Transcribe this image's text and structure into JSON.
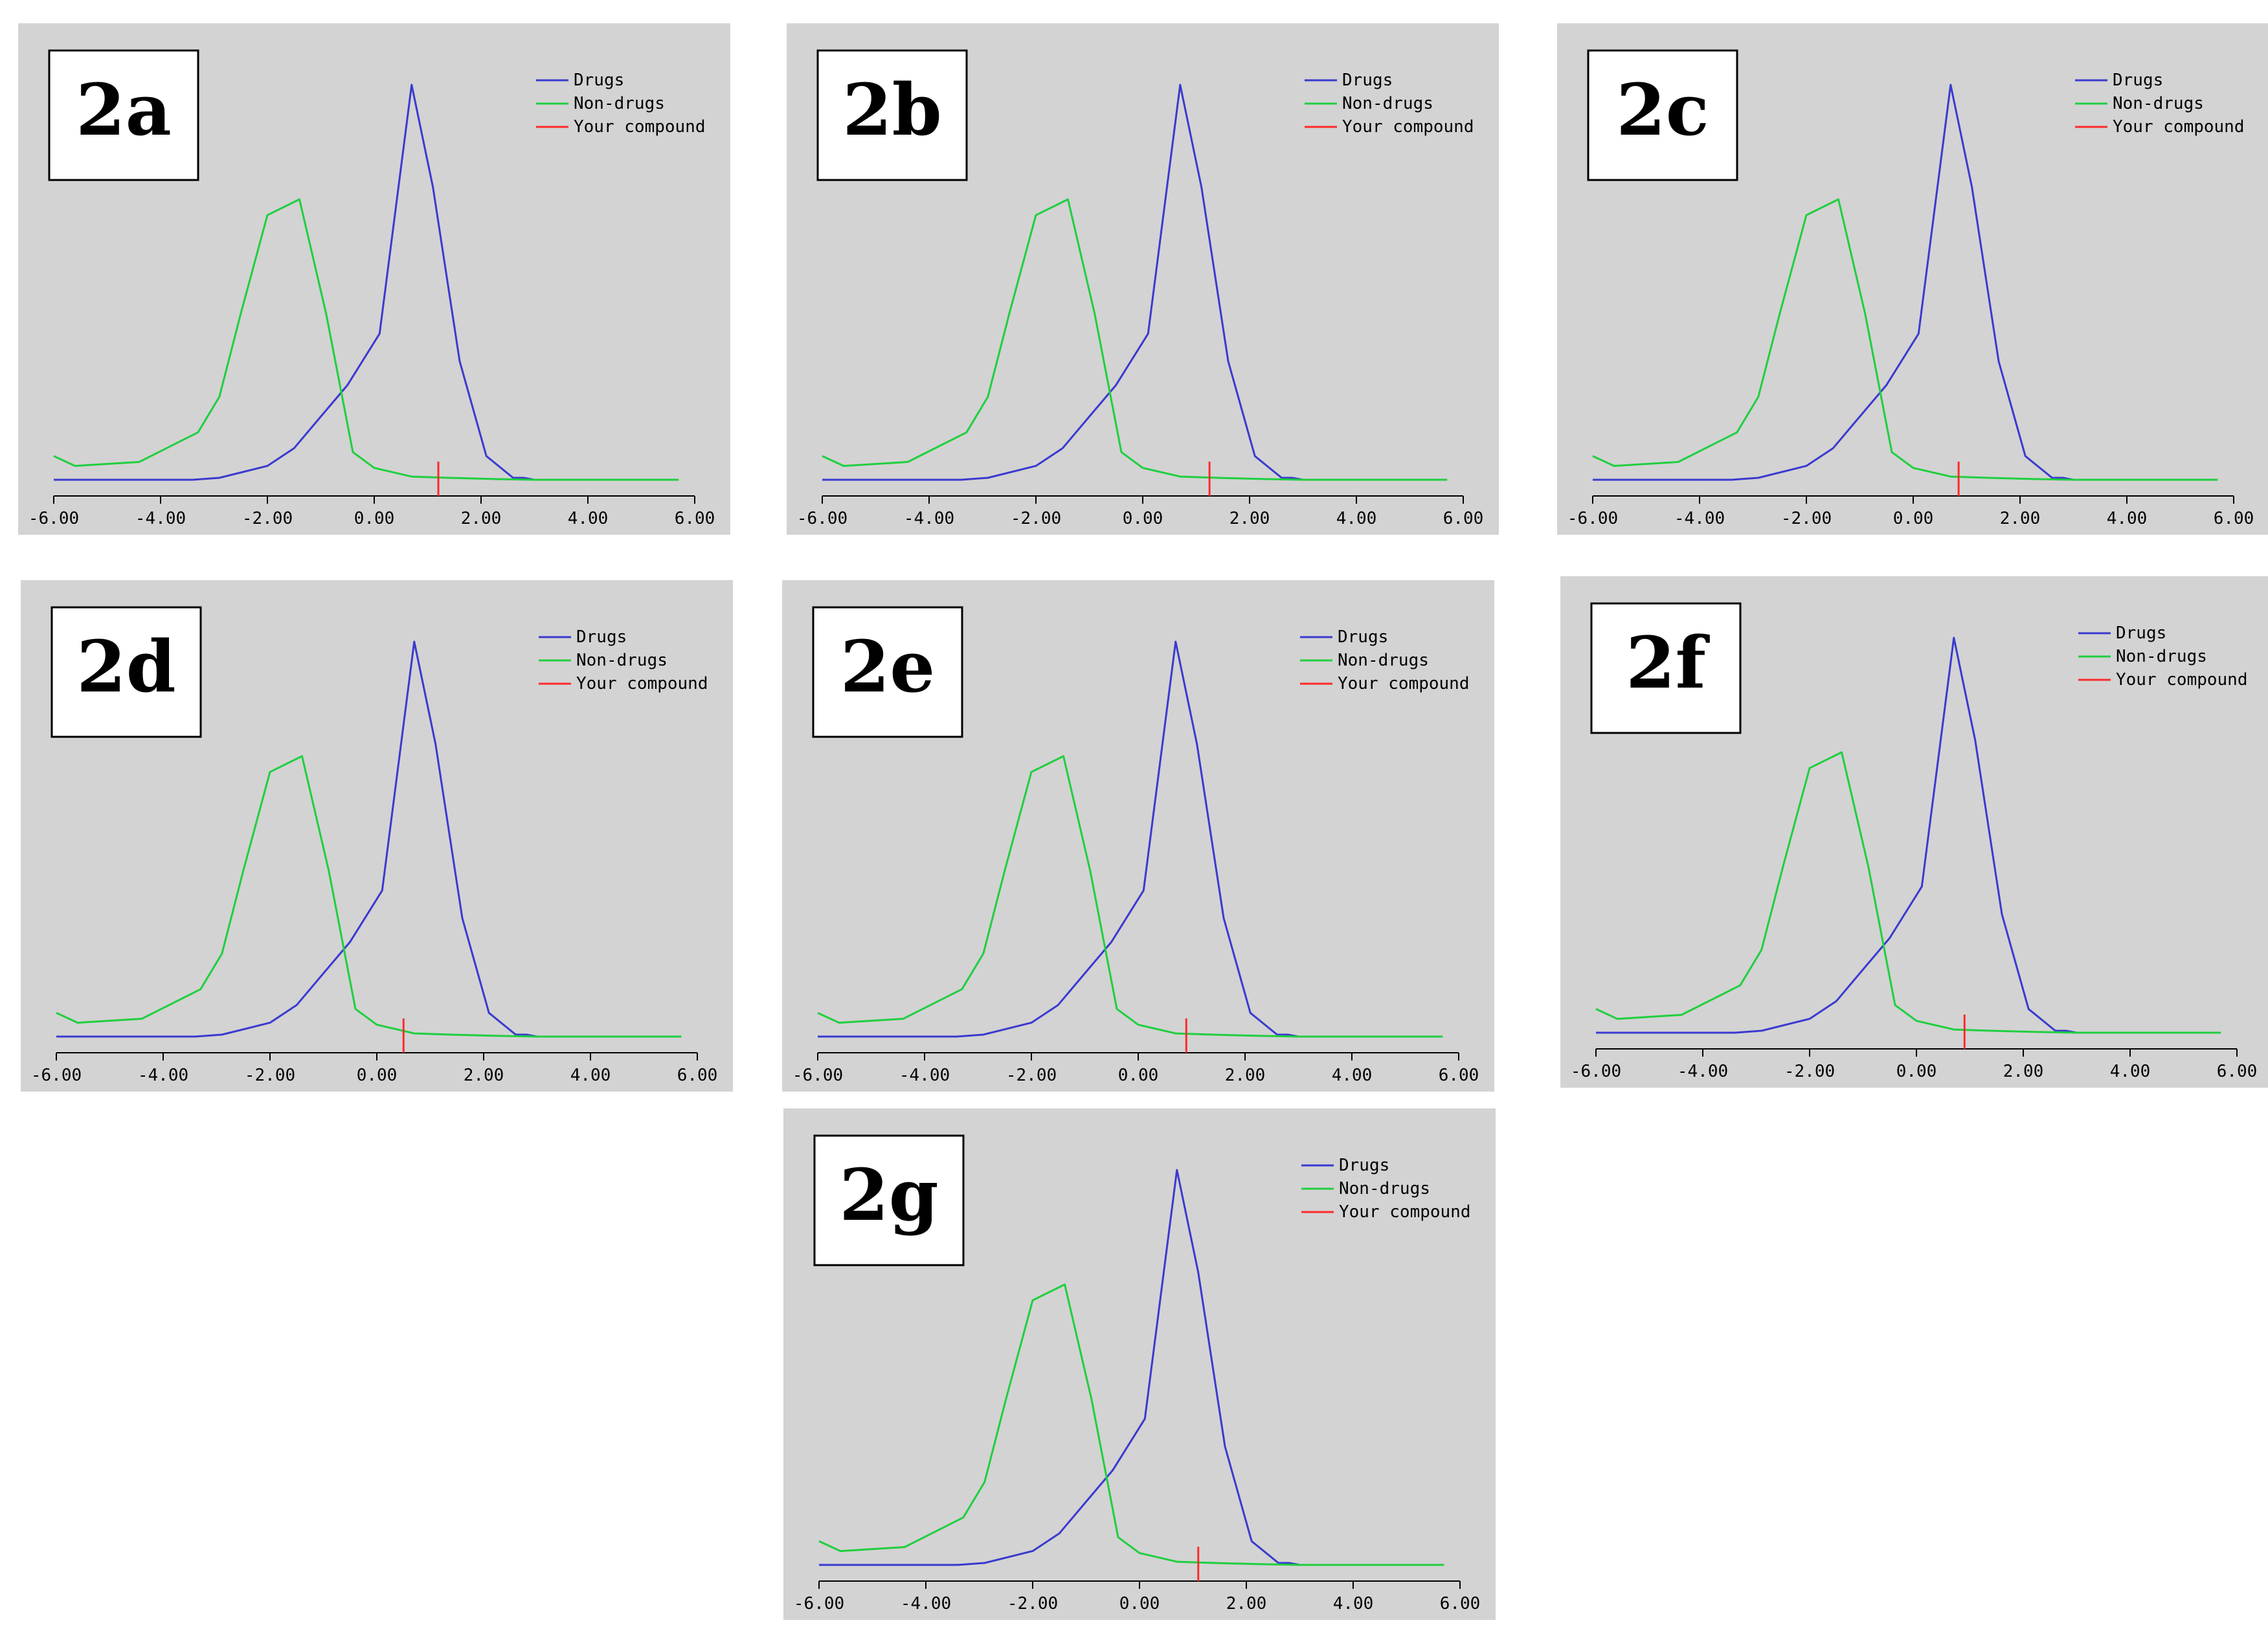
{
  "colors": {
    "background": "#d3d3d3",
    "drugs": "#3a3ad0",
    "nondrugs": "#1fcf3f",
    "compound": "#ff2a2a",
    "axis": "#000000",
    "label_box": "#ffffff"
  },
  "chart_data": [
    {
      "type": "line",
      "panel_label": "2a",
      "x_ticks": [
        "-6.00",
        "-4.00",
        "-2.00",
        "0.00",
        "2.00",
        "4.00",
        "6.00"
      ],
      "xlim": [
        -6,
        6
      ],
      "ylim": [
        0,
        1
      ],
      "legend_position": "top-right",
      "legend": [
        "Drugs",
        "Non-drugs",
        "Your compound"
      ],
      "series": [
        {
          "name": "Drugs",
          "x": [
            -6,
            -5.4,
            -4.4,
            -3.4,
            -2.9,
            -2,
            -1.5,
            -1,
            -0.5,
            0.1,
            0.7,
            1.1,
            1.6,
            2.1,
            2.6,
            2.8,
            3
          ],
          "y": [
            0,
            0,
            0,
            0,
            0.005,
            0.035,
            0.08,
            0.16,
            0.24,
            0.37,
            1.0,
            0.74,
            0.3,
            0.06,
            0.005,
            0.005,
            0
          ]
        },
        {
          "name": "Non-drugs",
          "x": [
            -6,
            -5.6,
            -4.4,
            -3.3,
            -2.9,
            -2.5,
            -2,
            -1.4,
            -0.9,
            -0.4,
            0,
            0.7,
            1.4,
            2.2,
            3,
            4,
            5,
            5.7
          ],
          "y": [
            0.06,
            0.035,
            0.045,
            0.12,
            0.21,
            0.42,
            0.67,
            0.71,
            0.42,
            0.07,
            0.03,
            0.008,
            0.005,
            0.002,
            0,
            0,
            0,
            0
          ]
        }
      ],
      "compound_x": 1.2
    },
    {
      "type": "line",
      "panel_label": "2b",
      "x_ticks": [
        "-6.00",
        "-4.00",
        "-2.00",
        "0.00",
        "2.00",
        "4.00",
        "6.00"
      ],
      "xlim": [
        -6,
        6
      ],
      "ylim": [
        0,
        1
      ],
      "legend_position": "top-right",
      "legend": [
        "Drugs",
        "Non-drugs",
        "Your compound"
      ],
      "series": [
        {
          "name": "Drugs",
          "x": [
            -6,
            -5.4,
            -4.4,
            -3.4,
            -2.9,
            -2,
            -1.5,
            -1,
            -0.5,
            0.1,
            0.7,
            1.1,
            1.6,
            2.1,
            2.6,
            2.8,
            3
          ],
          "y": [
            0,
            0,
            0,
            0,
            0.005,
            0.035,
            0.08,
            0.16,
            0.24,
            0.37,
            1.0,
            0.74,
            0.3,
            0.06,
            0.005,
            0.005,
            0
          ]
        },
        {
          "name": "Non-drugs",
          "x": [
            -6,
            -5.6,
            -4.4,
            -3.3,
            -2.9,
            -2.5,
            -2,
            -1.4,
            -0.9,
            -0.4,
            0,
            0.7,
            1.4,
            2.2,
            3,
            4,
            5,
            5.7
          ],
          "y": [
            0.06,
            0.035,
            0.045,
            0.12,
            0.21,
            0.42,
            0.67,
            0.71,
            0.42,
            0.07,
            0.03,
            0.008,
            0.005,
            0.002,
            0,
            0,
            0,
            0
          ]
        }
      ],
      "compound_x": 1.25
    },
    {
      "type": "line",
      "panel_label": "2c",
      "x_ticks": [
        "-6.00",
        "-4.00",
        "-2.00",
        "0.00",
        "2.00",
        "4.00",
        "6.00"
      ],
      "xlim": [
        -6,
        6
      ],
      "ylim": [
        0,
        1
      ],
      "legend_position": "top-right",
      "legend": [
        "Drugs",
        "Non-drugs",
        "Your compound"
      ],
      "series": [
        {
          "name": "Drugs",
          "x": [
            -6,
            -5.4,
            -4.4,
            -3.4,
            -2.9,
            -2,
            -1.5,
            -1,
            -0.5,
            0.1,
            0.7,
            1.1,
            1.6,
            2.1,
            2.6,
            2.8,
            3
          ],
          "y": [
            0,
            0,
            0,
            0,
            0.005,
            0.035,
            0.08,
            0.16,
            0.24,
            0.37,
            1.0,
            0.74,
            0.3,
            0.06,
            0.005,
            0.005,
            0
          ]
        },
        {
          "name": "Non-drugs",
          "x": [
            -6,
            -5.6,
            -4.4,
            -3.3,
            -2.9,
            -2.5,
            -2,
            -1.4,
            -0.9,
            -0.4,
            0,
            0.7,
            1.4,
            2.2,
            3,
            4,
            5,
            5.7
          ],
          "y": [
            0.06,
            0.035,
            0.045,
            0.12,
            0.21,
            0.42,
            0.67,
            0.71,
            0.42,
            0.07,
            0.03,
            0.008,
            0.005,
            0.002,
            0,
            0,
            0,
            0
          ]
        }
      ],
      "compound_x": 0.85
    },
    {
      "type": "line",
      "panel_label": "2d",
      "x_ticks": [
        "-6.00",
        "-4.00",
        "-2.00",
        "0.00",
        "2.00",
        "4.00",
        "6.00"
      ],
      "xlim": [
        -6,
        6
      ],
      "ylim": [
        0,
        1
      ],
      "legend_position": "top-right",
      "legend": [
        "Drugs",
        "Non-drugs",
        "Your compound"
      ],
      "series": [
        {
          "name": "Drugs",
          "x": [
            -6,
            -5.4,
            -4.4,
            -3.4,
            -2.9,
            -2,
            -1.5,
            -1,
            -0.5,
            0.1,
            0.7,
            1.1,
            1.6,
            2.1,
            2.6,
            2.8,
            3
          ],
          "y": [
            0,
            0,
            0,
            0,
            0.005,
            0.035,
            0.08,
            0.16,
            0.24,
            0.37,
            1.0,
            0.74,
            0.3,
            0.06,
            0.005,
            0.005,
            0
          ]
        },
        {
          "name": "Non-drugs",
          "x": [
            -6,
            -5.6,
            -4.4,
            -3.3,
            -2.9,
            -2.5,
            -2,
            -1.4,
            -0.9,
            -0.4,
            0,
            0.7,
            1.4,
            2.2,
            3,
            4,
            5,
            5.7
          ],
          "y": [
            0.06,
            0.035,
            0.045,
            0.12,
            0.21,
            0.42,
            0.67,
            0.71,
            0.42,
            0.07,
            0.03,
            0.008,
            0.005,
            0.002,
            0,
            0,
            0,
            0
          ]
        }
      ],
      "compound_x": 0.5
    },
    {
      "type": "line",
      "panel_label": "2e",
      "x_ticks": [
        "-6.00",
        "-4.00",
        "-2.00",
        "0.00",
        "2.00",
        "4.00",
        "6.00"
      ],
      "xlim": [
        -6,
        6
      ],
      "ylim": [
        0,
        1
      ],
      "legend_position": "top-right",
      "legend": [
        "Drugs",
        "Non-drugs",
        "Your compound"
      ],
      "series": [
        {
          "name": "Drugs",
          "x": [
            -6,
            -5.4,
            -4.4,
            -3.4,
            -2.9,
            -2,
            -1.5,
            -1,
            -0.5,
            0.1,
            0.7,
            1.1,
            1.6,
            2.1,
            2.6,
            2.8,
            3
          ],
          "y": [
            0,
            0,
            0,
            0,
            0.005,
            0.035,
            0.08,
            0.16,
            0.24,
            0.37,
            1.0,
            0.74,
            0.3,
            0.06,
            0.005,
            0.005,
            0
          ]
        },
        {
          "name": "Non-drugs",
          "x": [
            -6,
            -5.6,
            -4.4,
            -3.3,
            -2.9,
            -2.5,
            -2,
            -1.4,
            -0.9,
            -0.4,
            0,
            0.7,
            1.4,
            2.2,
            3,
            4,
            5,
            5.7
          ],
          "y": [
            0.06,
            0.035,
            0.045,
            0.12,
            0.21,
            0.42,
            0.67,
            0.71,
            0.42,
            0.07,
            0.03,
            0.008,
            0.005,
            0.002,
            0,
            0,
            0,
            0
          ]
        }
      ],
      "compound_x": 0.9
    },
    {
      "type": "line",
      "panel_label": "2f",
      "x_ticks": [
        "-6.00",
        "-4.00",
        "-2.00",
        "0.00",
        "2.00",
        "4.00",
        "6.00"
      ],
      "xlim": [
        -6,
        6
      ],
      "ylim": [
        0,
        1
      ],
      "legend_position": "top-right",
      "legend": [
        "Drugs",
        "Non-drugs",
        "Your compound"
      ],
      "series": [
        {
          "name": "Drugs",
          "x": [
            -6,
            -5.4,
            -4.4,
            -3.4,
            -2.9,
            -2,
            -1.5,
            -1,
            -0.5,
            0.1,
            0.7,
            1.1,
            1.6,
            2.1,
            2.6,
            2.8,
            3
          ],
          "y": [
            0,
            0,
            0,
            0,
            0.005,
            0.035,
            0.08,
            0.16,
            0.24,
            0.37,
            1.0,
            0.74,
            0.3,
            0.06,
            0.005,
            0.005,
            0
          ]
        },
        {
          "name": "Non-drugs",
          "x": [
            -6,
            -5.6,
            -4.4,
            -3.3,
            -2.9,
            -2.5,
            -2,
            -1.4,
            -0.9,
            -0.4,
            0,
            0.7,
            1.4,
            2.2,
            3,
            4,
            5,
            5.7
          ],
          "y": [
            0.06,
            0.035,
            0.045,
            0.12,
            0.21,
            0.42,
            0.67,
            0.71,
            0.42,
            0.07,
            0.03,
            0.008,
            0.005,
            0.002,
            0,
            0,
            0,
            0
          ]
        }
      ],
      "compound_x": 0.9
    },
    {
      "type": "line",
      "panel_label": "2g",
      "x_ticks": [
        "-6.00",
        "-4.00",
        "-2.00",
        "0.00",
        "2.00",
        "4.00",
        "6.00"
      ],
      "xlim": [
        -6,
        6
      ],
      "ylim": [
        0,
        1
      ],
      "legend_position": "top-right",
      "legend": [
        "Drugs",
        "Non-drugs",
        "Your compound"
      ],
      "series": [
        {
          "name": "Drugs",
          "x": [
            -6,
            -5.4,
            -4.4,
            -3.4,
            -2.9,
            -2,
            -1.5,
            -1,
            -0.5,
            0.1,
            0.7,
            1.1,
            1.6,
            2.1,
            2.6,
            2.8,
            3
          ],
          "y": [
            0,
            0,
            0,
            0,
            0.005,
            0.035,
            0.08,
            0.16,
            0.24,
            0.37,
            1.0,
            0.74,
            0.3,
            0.06,
            0.005,
            0.005,
            0
          ]
        },
        {
          "name": "Non-drugs",
          "x": [
            -6,
            -5.6,
            -4.4,
            -3.3,
            -2.9,
            -2.5,
            -2,
            -1.4,
            -0.9,
            -0.4,
            0,
            0.7,
            1.4,
            2.2,
            3,
            4,
            5,
            5.7
          ],
          "y": [
            0.06,
            0.035,
            0.045,
            0.12,
            0.21,
            0.42,
            0.67,
            0.71,
            0.42,
            0.07,
            0.03,
            0.008,
            0.005,
            0.002,
            0,
            0,
            0,
            0
          ]
        }
      ],
      "compound_x": 1.1
    }
  ]
}
